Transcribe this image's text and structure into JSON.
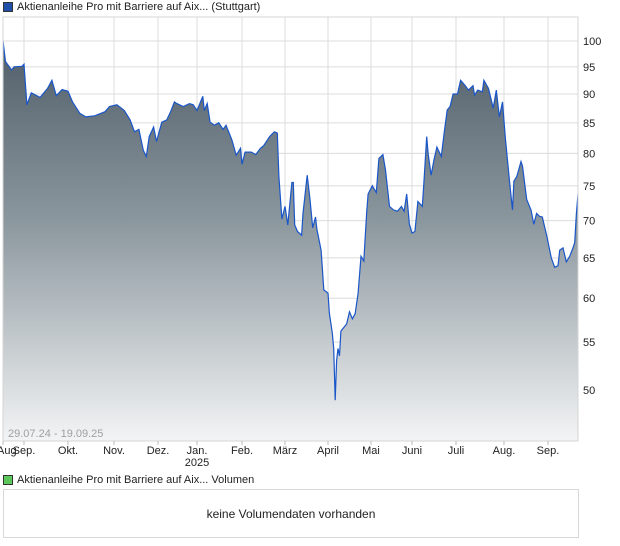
{
  "price_legend": {
    "label": "Aktienanleihe Pro mit Barriere auf Aix... (Stuttgart)",
    "color": "#1f4fa8"
  },
  "volume_legend": {
    "label": "Aktienanleihe Pro mit Barriere auf Aix... Volumen",
    "color": "#5cc85c"
  },
  "volume_message": "keine Volumendaten vorhanden",
  "chart_data": {
    "type": "area",
    "title": "Aktienanleihe Pro mit Barriere auf Aix... (Stuttgart)",
    "date_range_label": "29.07.24 - 19.09.25",
    "xlabel": "",
    "ylabel": "",
    "y_scale": "log",
    "ylim": [
      45,
      103
    ],
    "grid": true,
    "line_color": "#1a56c8",
    "y_ticks": [
      "100",
      "95",
      "90",
      "85",
      "80",
      "75",
      "70",
      "65",
      "60",
      "55",
      "50"
    ],
    "x_ticks": [
      {
        "label": "Aug",
        "date": "2024-08-01"
      },
      {
        "label": "Sep.",
        "date": "2024-09-01"
      },
      {
        "label": "Okt.",
        "date": "2024-10-01"
      },
      {
        "label": "Nov.",
        "date": "2024-11-01"
      },
      {
        "label": "Dez.",
        "date": "2024-12-01"
      },
      {
        "label": "Jan.",
        "date": "2025-01-01",
        "sub": "2025"
      },
      {
        "label": "Feb.",
        "date": "2025-02-01"
      },
      {
        "label": "März",
        "date": "2025-03-01"
      },
      {
        "label": "April",
        "date": "2025-04-01"
      },
      {
        "label": "Mai",
        "date": "2025-05-01"
      },
      {
        "label": "Juni",
        "date": "2025-06-01"
      },
      {
        "label": "Juli",
        "date": "2025-07-01"
      },
      {
        "label": "Aug.",
        "date": "2025-08-01"
      },
      {
        "label": "Sep.",
        "date": "2025-09-01"
      }
    ],
    "series": [
      {
        "name": "Aktienanleihe Pro mit Barriere auf Aix... (Stuttgart)",
        "points": [
          [
            "2024-07-29",
            100
          ],
          [
            "2024-08-02",
            96
          ],
          [
            "2024-08-12",
            94.4
          ],
          [
            "2024-08-16",
            95
          ],
          [
            "2024-08-29",
            95.1
          ],
          [
            "2024-09-01",
            95.5
          ],
          [
            "2024-09-03",
            88.1
          ],
          [
            "2024-09-06",
            90.2
          ],
          [
            "2024-09-12",
            89.4
          ],
          [
            "2024-09-17",
            91
          ],
          [
            "2024-09-20",
            92.5
          ],
          [
            "2024-09-23",
            89.7
          ],
          [
            "2024-09-27",
            90.8
          ],
          [
            "2024-10-01",
            90.5
          ],
          [
            "2024-10-04",
            88.6
          ],
          [
            "2024-10-09",
            86.6
          ],
          [
            "2024-10-13",
            86.0
          ],
          [
            "2024-10-19",
            86.2
          ],
          [
            "2024-10-26",
            86.9
          ],
          [
            "2024-10-29",
            87.8
          ],
          [
            "2024-11-03",
            88.1
          ],
          [
            "2024-11-08",
            87.1
          ],
          [
            "2024-11-12",
            85.5
          ],
          [
            "2024-11-15",
            83.5
          ],
          [
            "2024-11-18",
            83.9
          ],
          [
            "2024-11-21",
            80.5
          ],
          [
            "2024-11-23",
            79.5
          ],
          [
            "2024-11-25",
            82.7
          ],
          [
            "2024-11-28",
            84.3
          ],
          [
            "2024-11-30",
            81.9
          ],
          [
            "2024-12-04",
            85.1
          ],
          [
            "2024-12-08",
            85.5
          ],
          [
            "2024-12-11",
            86.9
          ],
          [
            "2024-12-14",
            88.6
          ],
          [
            "2024-12-16",
            88.3
          ],
          [
            "2024-12-21",
            87.8
          ],
          [
            "2024-12-26",
            88.3
          ],
          [
            "2024-12-29",
            88.1
          ],
          [
            "2025-01-01",
            87.1
          ],
          [
            "2025-01-05",
            89.6
          ],
          [
            "2025-01-06",
            87.1
          ],
          [
            "2025-01-08",
            88.3
          ],
          [
            "2025-01-10",
            85.1
          ],
          [
            "2025-01-13",
            84.6
          ],
          [
            "2025-01-16",
            85.0
          ],
          [
            "2025-01-19",
            83.9
          ],
          [
            "2025-01-21",
            84.6
          ],
          [
            "2025-01-25",
            82.2
          ],
          [
            "2025-01-28",
            79.7
          ],
          [
            "2025-01-31",
            80.8
          ],
          [
            "2025-02-01",
            78.3
          ],
          [
            "2025-02-03",
            80.2
          ],
          [
            "2025-02-07",
            80.2
          ],
          [
            "2025-02-10",
            79.8
          ],
          [
            "2025-02-13",
            80.8
          ],
          [
            "2025-02-15",
            81.2
          ],
          [
            "2025-02-19",
            82.7
          ],
          [
            "2025-02-22",
            83.5
          ],
          [
            "2025-02-24",
            83.3
          ],
          [
            "2025-02-25",
            76.4
          ],
          [
            "2025-02-27",
            70.2
          ],
          [
            "2025-03-01",
            72
          ],
          [
            "2025-03-03",
            69.4
          ],
          [
            "2025-03-06",
            75.5
          ],
          [
            "2025-03-07",
            75.5
          ],
          [
            "2025-03-08",
            69.4
          ],
          [
            "2025-03-10",
            68.5
          ],
          [
            "2025-03-13",
            68
          ],
          [
            "2025-03-14",
            71
          ],
          [
            "2025-03-17",
            76.6
          ],
          [
            "2025-03-19",
            73
          ],
          [
            "2025-03-21",
            69
          ],
          [
            "2025-03-23",
            70.5
          ],
          [
            "2025-03-24",
            68.8
          ],
          [
            "2025-03-27",
            66
          ],
          [
            "2025-03-29",
            61
          ],
          [
            "2025-04-01",
            60.6
          ],
          [
            "2025-04-02",
            58.2
          ],
          [
            "2025-04-04",
            56
          ],
          [
            "2025-04-05",
            54.3
          ],
          [
            "2025-04-06",
            49
          ],
          [
            "2025-04-07",
            53
          ],
          [
            "2025-04-08",
            54.3
          ],
          [
            "2025-04-09",
            53.5
          ],
          [
            "2025-04-10",
            56.2
          ],
          [
            "2025-04-14",
            57
          ],
          [
            "2025-04-16",
            58.4
          ],
          [
            "2025-04-18",
            57.6
          ],
          [
            "2025-04-20",
            58.2
          ],
          [
            "2025-04-22",
            60.6
          ],
          [
            "2025-04-24",
            65.2
          ],
          [
            "2025-04-26",
            64.6
          ],
          [
            "2025-04-28",
            71.2
          ],
          [
            "2025-04-29",
            73.8
          ],
          [
            "2025-05-02",
            75
          ],
          [
            "2025-05-05",
            74
          ],
          [
            "2025-05-07",
            79.2
          ],
          [
            "2025-05-10",
            79.8
          ],
          [
            "2025-05-12",
            77.4
          ],
          [
            "2025-05-15",
            72
          ],
          [
            "2025-05-18",
            71.5
          ],
          [
            "2025-05-21",
            71.3
          ],
          [
            "2025-05-24",
            72
          ],
          [
            "2025-05-26",
            71.3
          ],
          [
            "2025-05-28",
            73.8
          ],
          [
            "2025-05-30",
            69.5
          ],
          [
            "2025-06-01",
            68.3
          ],
          [
            "2025-06-03",
            68.5
          ],
          [
            "2025-06-05",
            72.7
          ],
          [
            "2025-06-08",
            72
          ],
          [
            "2025-06-09",
            75
          ],
          [
            "2025-06-11",
            82.7
          ],
          [
            "2025-06-12",
            80
          ],
          [
            "2025-06-14",
            76.6
          ],
          [
            "2025-06-16",
            79
          ],
          [
            "2025-06-18",
            81
          ],
          [
            "2025-06-21",
            79.5
          ],
          [
            "2025-06-23",
            83.5
          ],
          [
            "2025-06-25",
            87.2
          ],
          [
            "2025-06-27",
            87.8
          ],
          [
            "2025-06-29",
            90
          ],
          [
            "2025-07-02",
            90
          ],
          [
            "2025-07-04",
            92.5
          ],
          [
            "2025-07-07",
            91.5
          ],
          [
            "2025-07-09",
            90.7
          ],
          [
            "2025-07-12",
            91.5
          ],
          [
            "2025-07-13",
            89.8
          ],
          [
            "2025-07-15",
            90.7
          ],
          [
            "2025-07-18",
            90.4
          ],
          [
            "2025-07-19",
            92.5
          ],
          [
            "2025-07-22",
            91
          ],
          [
            "2025-07-25",
            87.5
          ],
          [
            "2025-07-27",
            90.7
          ],
          [
            "2025-07-29",
            86
          ],
          [
            "2025-07-31",
            88.6
          ],
          [
            "2025-08-02",
            82.4
          ],
          [
            "2025-08-05",
            75.4
          ],
          [
            "2025-08-07",
            71.5
          ],
          [
            "2025-08-08",
            75.7
          ],
          [
            "2025-08-10",
            76.4
          ],
          [
            "2025-08-13",
            78.7
          ],
          [
            "2025-08-14",
            78
          ],
          [
            "2025-08-17",
            73
          ],
          [
            "2025-08-20",
            71.5
          ],
          [
            "2025-08-22",
            69.5
          ],
          [
            "2025-08-24",
            71
          ],
          [
            "2025-08-26",
            70.6
          ],
          [
            "2025-08-28",
            70.5
          ],
          [
            "2025-08-31",
            68
          ],
          [
            "2025-09-03",
            65
          ],
          [
            "2025-09-05",
            63.8
          ],
          [
            "2025-09-07",
            64
          ],
          [
            "2025-09-08",
            66
          ],
          [
            "2025-09-10",
            66.3
          ],
          [
            "2025-09-12",
            64.5
          ],
          [
            "2025-09-14",
            65.2
          ],
          [
            "2025-09-16",
            66.3
          ],
          [
            "2025-09-17",
            67
          ],
          [
            "2025-09-18",
            70.8
          ],
          [
            "2025-09-19",
            73.8
          ]
        ]
      }
    ]
  }
}
